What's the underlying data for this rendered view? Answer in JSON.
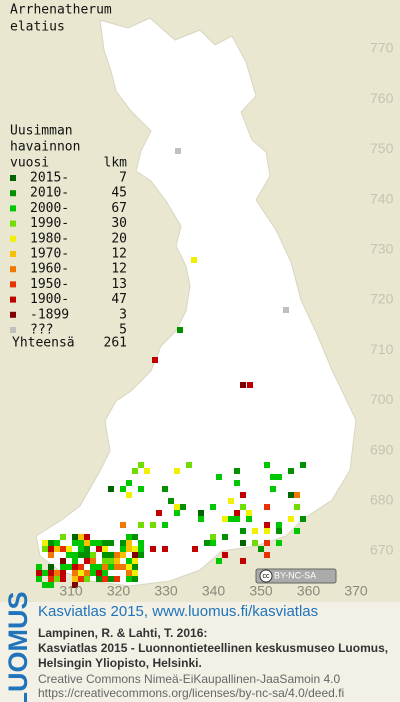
{
  "title": [
    "Arrhenatherum",
    "elatius"
  ],
  "legend": {
    "header": [
      "Uusimman",
      "havainnon"
    ],
    "col_year": "vuosi",
    "col_count": "lkm",
    "items": [
      {
        "label": "2015-",
        "count": 7,
        "color": "#006400"
      },
      {
        "label": "2010-",
        "count": 45,
        "color": "#009000"
      },
      {
        "label": "2000-",
        "count": 67,
        "color": "#00c800"
      },
      {
        "label": "1990-",
        "count": 30,
        "color": "#70dc00"
      },
      {
        "label": "1980-",
        "count": 20,
        "color": "#f0f000"
      },
      {
        "label": "1970-",
        "count": 12,
        "color": "#f8c000"
      },
      {
        "label": "1960-",
        "count": 12,
        "color": "#f07800"
      },
      {
        "label": "1950-",
        "count": 13,
        "color": "#e83000"
      },
      {
        "label": "1900-",
        "count": 47,
        "color": "#c00000"
      },
      {
        "label": "-1899",
        "count": 3,
        "color": "#800000"
      },
      {
        "label": "???",
        "count": 5,
        "color": "#c0c0c0"
      }
    ],
    "total_label": "Yhteensä",
    "total": 261
  },
  "grid": {
    "northing": [
      770,
      760,
      750,
      740,
      730,
      720,
      710,
      700,
      690,
      680,
      670
    ],
    "easting": [
      310,
      320,
      330,
      340,
      350,
      360,
      370
    ]
  },
  "license_badge": "BY-NC-SA",
  "footer": {
    "logo": "LUOMUS",
    "headline": "Kasviatlas 2015, www.luomus.fi/kasviatlas",
    "citation": [
      "Lampinen, R. & Lahti, T. 2016:",
      "Kasviatlas 2015 - Luonnontieteellinen keskusmuseo Luomus,",
      "Helsingin Yliopisto, Helsinki."
    ],
    "license": [
      "Creative Commons Nimeä-EiKaupallinen-JaaSamoin 4.0",
      "https://creativecommons.org/licenses/by-nc-sa/4.0/deed.fi"
    ]
  }
}
